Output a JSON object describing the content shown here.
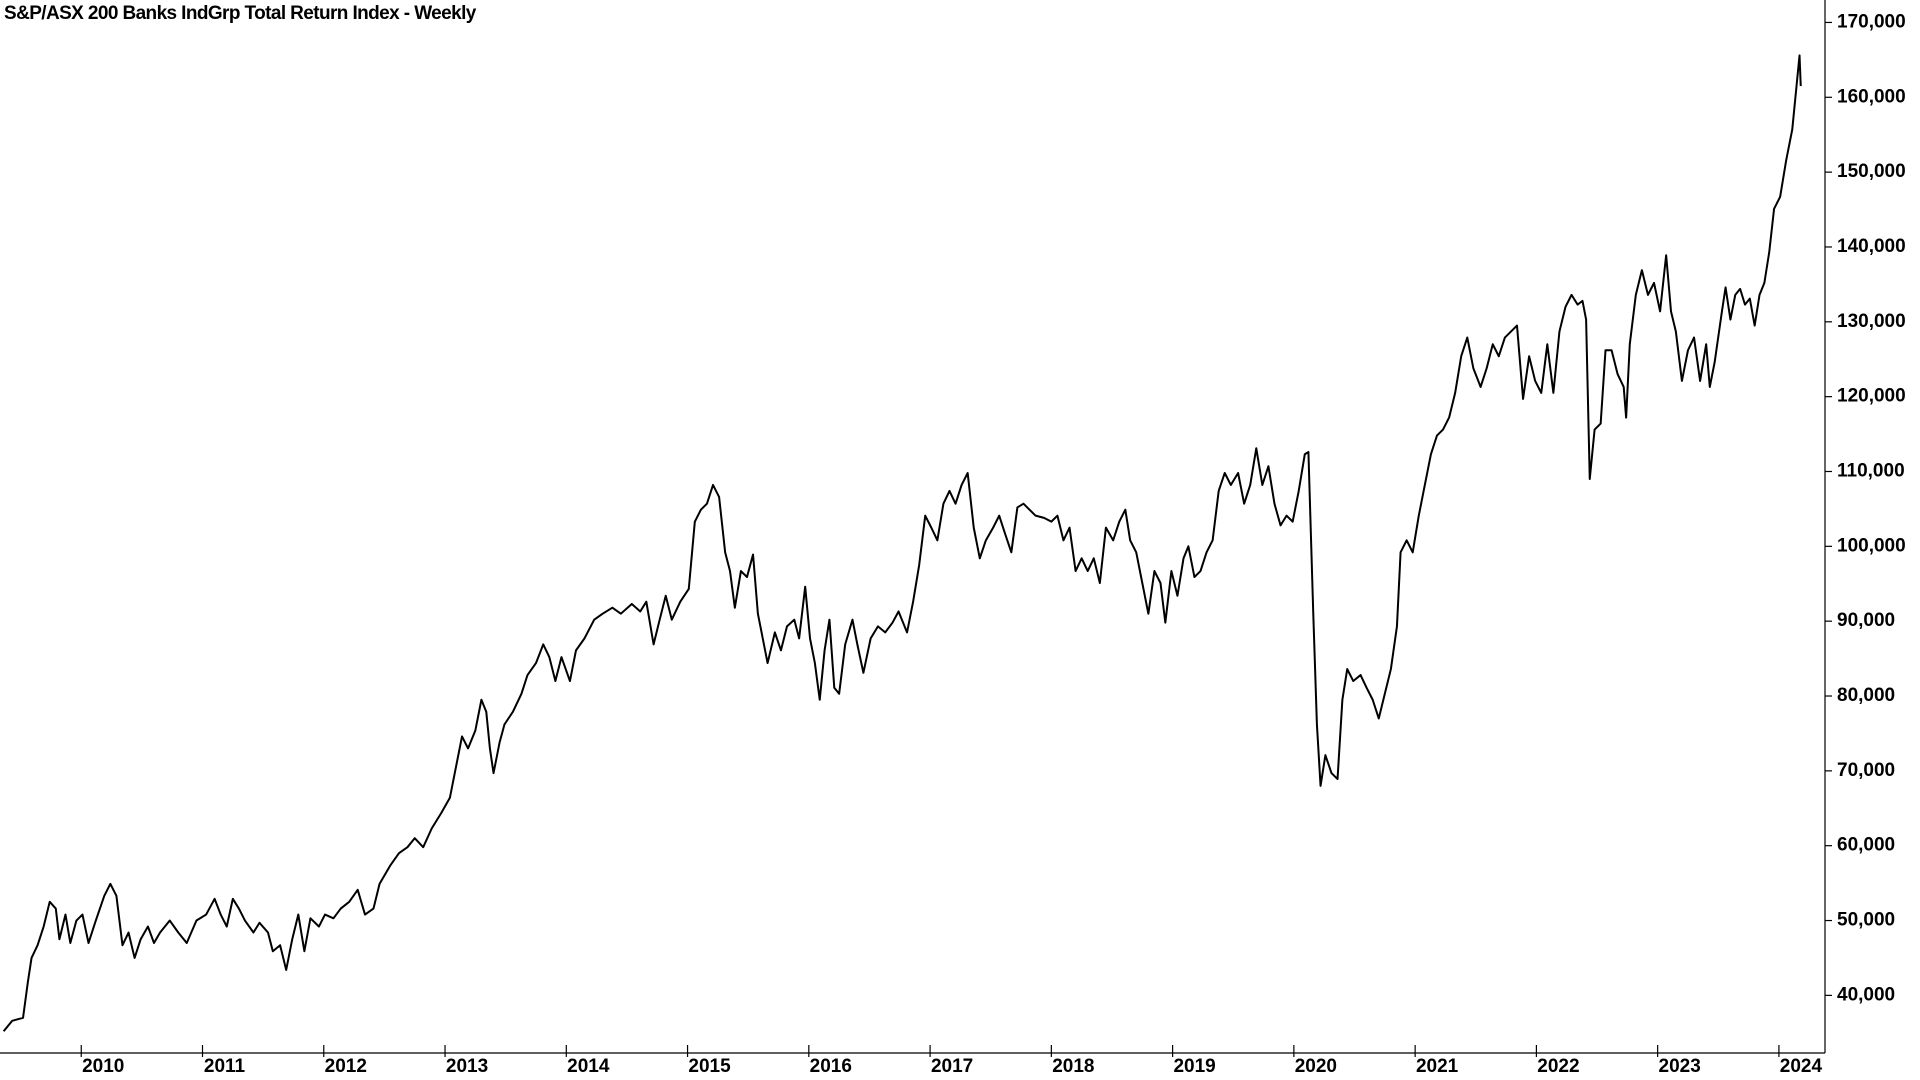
{
  "chart_data": {
    "type": "line",
    "title": "S&P/ASX 200 Banks IndGrp Total Return Index - Weekly",
    "color": "#000000",
    "x": [
      2009.36,
      2009.43,
      2009.52,
      2009.56,
      2009.59,
      2009.64,
      2009.69,
      2009.74,
      2009.79,
      2009.82,
      2009.87,
      2009.91,
      2009.96,
      2010.01,
      2010.06,
      2010.12,
      2010.19,
      2010.24,
      2010.29,
      2010.34,
      2010.39,
      2010.44,
      2010.49,
      2010.55,
      2010.6,
      2010.65,
      2010.73,
      2010.8,
      2010.87,
      2010.95,
      2011.03,
      2011.1,
      2011.15,
      2011.2,
      2011.25,
      2011.3,
      2011.35,
      2011.42,
      2011.47,
      2011.54,
      2011.58,
      2011.64,
      2011.69,
      2011.74,
      2011.79,
      2011.84,
      2011.89,
      2011.96,
      2012.01,
      2012.08,
      2012.14,
      2012.21,
      2012.28,
      2012.34,
      2012.41,
      2012.46,
      2012.55,
      2012.62,
      2012.69,
      2012.75,
      2012.82,
      2012.89,
      2012.97,
      2013.04,
      2013.09,
      2013.14,
      2013.19,
      2013.25,
      2013.3,
      2013.34,
      2013.37,
      2013.4,
      2013.45,
      2013.49,
      2013.56,
      2013.63,
      2013.68,
      2013.75,
      2013.81,
      2013.86,
      2013.91,
      2013.96,
      2014.03,
      2014.08,
      2014.15,
      2014.23,
      2014.3,
      2014.38,
      2014.45,
      2014.54,
      2014.61,
      2014.66,
      2014.72,
      2014.77,
      2014.82,
      2014.87,
      2014.94,
      2015.01,
      2015.06,
      2015.11,
      2015.16,
      2015.21,
      2015.26,
      2015.31,
      2015.35,
      2015.39,
      2015.44,
      2015.49,
      2015.54,
      2015.58,
      2015.62,
      2015.66,
      2015.72,
      2015.77,
      2015.82,
      2015.88,
      2015.92,
      2015.97,
      2016.01,
      2016.05,
      2016.09,
      2016.13,
      2016.17,
      2016.21,
      2016.25,
      2016.3,
      2016.36,
      2016.4,
      2016.45,
      2016.51,
      2016.57,
      2016.63,
      2016.69,
      2016.74,
      2016.81,
      2016.86,
      2016.91,
      2016.96,
      2017.01,
      2017.06,
      2017.11,
      2017.16,
      2017.21,
      2017.26,
      2017.31,
      2017.36,
      2017.41,
      2017.46,
      2017.52,
      2017.57,
      2017.62,
      2017.67,
      2017.72,
      2017.77,
      2017.82,
      2017.87,
      2017.94,
      2018.0,
      2018.05,
      2018.1,
      2018.15,
      2018.2,
      2018.25,
      2018.3,
      2018.35,
      2018.4,
      2018.45,
      2018.51,
      2018.56,
      2018.61,
      2018.65,
      2018.7,
      2018.75,
      2018.8,
      2018.85,
      2018.9,
      2018.94,
      2018.99,
      2019.04,
      2019.09,
      2019.13,
      2019.18,
      2019.23,
      2019.28,
      2019.33,
      2019.38,
      2019.43,
      2019.48,
      2019.54,
      2019.59,
      2019.64,
      2019.69,
      2019.74,
      2019.79,
      2019.84,
      2019.89,
      2019.94,
      2019.99,
      2020.04,
      2020.09,
      2020.12,
      2020.16,
      2020.19,
      2020.22,
      2020.26,
      2020.31,
      2020.36,
      2020.4,
      2020.44,
      2020.49,
      2020.55,
      2020.6,
      2020.65,
      2020.7,
      2020.75,
      2020.8,
      2020.85,
      2020.88,
      2020.93,
      2020.98,
      2021.03,
      2021.08,
      2021.13,
      2021.18,
      2021.23,
      2021.28,
      2021.33,
      2021.38,
      2021.43,
      2021.48,
      2021.54,
      2021.59,
      2021.64,
      2021.69,
      2021.74,
      2021.79,
      2021.84,
      2021.89,
      2021.94,
      2021.99,
      2022.04,
      2022.09,
      2022.14,
      2022.19,
      2022.24,
      2022.29,
      2022.34,
      2022.38,
      2022.41,
      2022.44,
      2022.48,
      2022.53,
      2022.57,
      2022.62,
      2022.67,
      2022.72,
      2022.74,
      2022.77,
      2022.82,
      2022.87,
      2022.92,
      2022.97,
      2023.02,
      2023.07,
      2023.11,
      2023.15,
      2023.2,
      2023.25,
      2023.3,
      2023.35,
      2023.4,
      2023.43,
      2023.47,
      2023.53,
      2023.56,
      2023.6,
      2023.64,
      2023.68,
      2023.72,
      2023.76,
      2023.8,
      2023.84,
      2023.88,
      2023.92,
      2023.96,
      2024.01,
      2024.06,
      2024.11,
      2024.15,
      2024.17,
      2024.18
    ],
    "values": [
      35200,
      36600,
      37000,
      41800,
      45000,
      46700,
      49200,
      52500,
      51600,
      47500,
      50800,
      47000,
      50000,
      50800,
      47000,
      50000,
      53300,
      54900,
      53300,
      46700,
      48400,
      45000,
      47500,
      49200,
      47000,
      48400,
      50000,
      48400,
      47000,
      50000,
      50800,
      52900,
      50800,
      49200,
      52900,
      51600,
      50000,
      48400,
      49700,
      48400,
      45900,
      46700,
      43400,
      47500,
      50800,
      45900,
      50300,
      49200,
      50800,
      50300,
      51600,
      52500,
      54100,
      50800,
      51600,
      54900,
      57400,
      59000,
      59800,
      61000,
      59800,
      62300,
      64400,
      66400,
      70500,
      74600,
      73000,
      75400,
      79500,
      77900,
      73000,
      69700,
      73800,
      76200,
      77900,
      80300,
      82800,
      84400,
      86900,
      85200,
      82000,
      85200,
      82000,
      86100,
      87700,
      90200,
      91000,
      91800,
      91000,
      92300,
      91300,
      92600,
      86900,
      90200,
      93400,
      90200,
      92600,
      94300,
      103300,
      104900,
      105700,
      108200,
      106600,
      99200,
      96700,
      91800,
      96700,
      95900,
      98900,
      91000,
      87700,
      84400,
      88500,
      86100,
      89300,
      90200,
      87700,
      94600,
      87700,
      84400,
      79500,
      86100,
      90200,
      81100,
      80300,
      86900,
      90200,
      86900,
      83100,
      87700,
      89300,
      88500,
      89800,
      91300,
      88500,
      92600,
      97500,
      104100,
      102500,
      100800,
      105700,
      107400,
      105700,
      108200,
      109800,
      102500,
      98400,
      100800,
      102500,
      104100,
      101600,
      99200,
      105200,
      105700,
      104900,
      104100,
      103800,
      103300,
      104100,
      100800,
      102500,
      96700,
      98400,
      96700,
      98400,
      95100,
      102500,
      100800,
      103300,
      104900,
      100800,
      99200,
      95100,
      91000,
      96700,
      95100,
      89800,
      96700,
      93400,
      98400,
      100000,
      95900,
      96700,
      99200,
      100800,
      107400,
      109800,
      108200,
      109800,
      105700,
      108200,
      113100,
      108200,
      110700,
      105700,
      102800,
      104100,
      103300,
      107400,
      112300,
      112600,
      91000,
      76200,
      68000,
      72100,
      69700,
      68900,
      79500,
      83600,
      82000,
      82800,
      81100,
      79500,
      77000,
      80300,
      83600,
      89300,
      99200,
      100800,
      99200,
      104100,
      108200,
      112300,
      114800,
      115600,
      117200,
      120500,
      125400,
      127900,
      123800,
      121300,
      123800,
      127000,
      125400,
      127900,
      128700,
      129500,
      119700,
      125400,
      122100,
      120500,
      127000,
      120500,
      128700,
      132000,
      133600,
      132300,
      132800,
      130300,
      109000,
      115600,
      116400,
      126200,
      126200,
      123000,
      121300,
      117200,
      127000,
      133600,
      136900,
      133600,
      135200,
      131400,
      138900,
      131400,
      128700,
      122100,
      126200,
      127900,
      122100,
      127000,
      121300,
      124600,
      131400,
      134600,
      130300,
      133600,
      134400,
      132300,
      133100,
      129500,
      133600,
      135200,
      139300,
      145100,
      146700,
      151600,
      155700,
      162300,
      165600,
      161500
    ],
    "xlim": [
      2009.33,
      2024.38
    ],
    "xticks": [
      2010,
      2011,
      2012,
      2013,
      2014,
      2015,
      2016,
      2017,
      2018,
      2019,
      2020,
      2021,
      2022,
      2023,
      2024
    ],
    "ylim": [
      32300,
      173000
    ],
    "yticks": [
      {
        "value": 40000,
        "label": "40,000"
      },
      {
        "value": 50000,
        "label": "50,000"
      },
      {
        "value": 60000,
        "label": "60,000"
      },
      {
        "value": 70000,
        "label": "70,000"
      },
      {
        "value": 80000,
        "label": "80,000"
      },
      {
        "value": 90000,
        "label": "90,000"
      },
      {
        "value": 100000,
        "label": "100,000"
      },
      {
        "value": 110000,
        "label": "110,000"
      },
      {
        "value": 120000,
        "label": "120,000"
      },
      {
        "value": 130000,
        "label": "130,000"
      },
      {
        "value": 140000,
        "label": "140,000"
      },
      {
        "value": 150000,
        "label": "150,000"
      },
      {
        "value": 160000,
        "label": "160,000"
      },
      {
        "value": 170000,
        "label": "170,000"
      }
    ],
    "grid": false
  }
}
